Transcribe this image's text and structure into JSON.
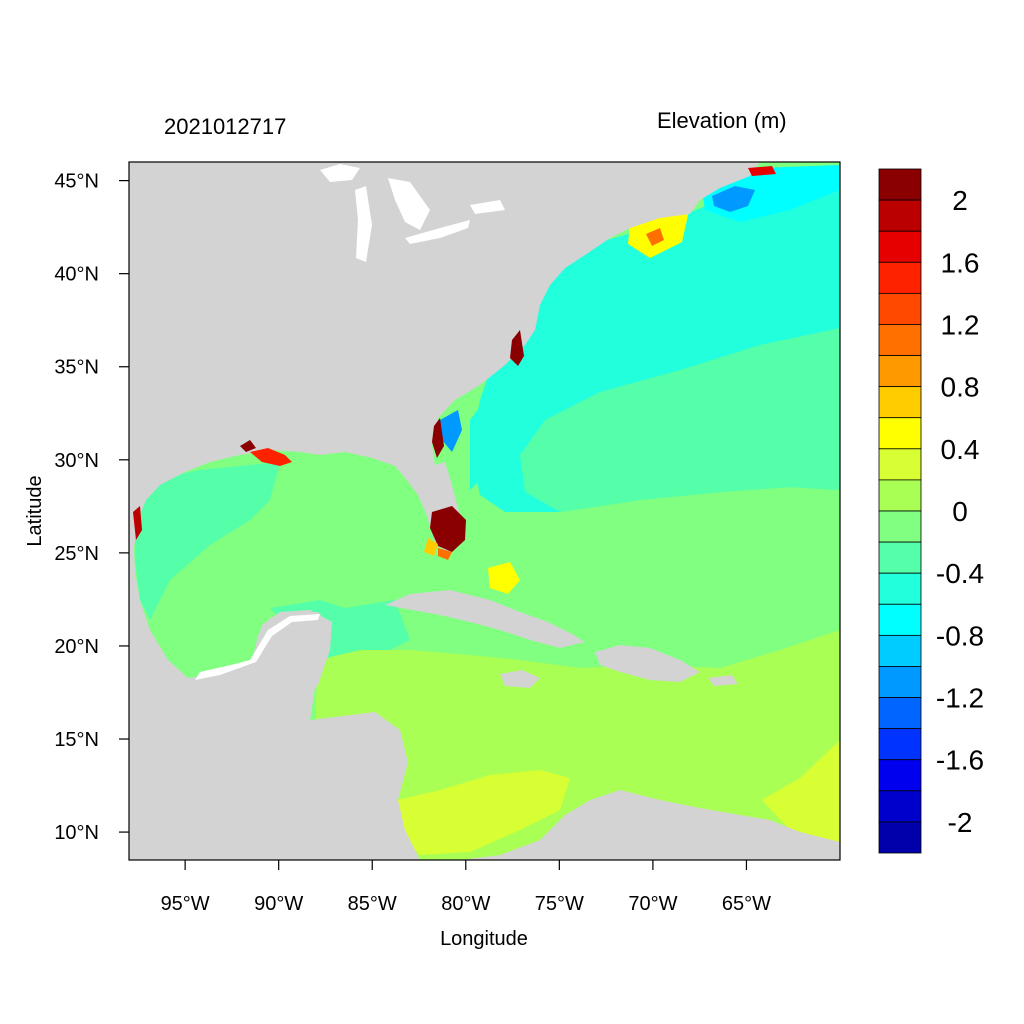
{
  "header": {
    "timestamp": "2021012717",
    "variable": "Elevation (m)"
  },
  "axes": {
    "xlabel": "Longitude",
    "ylabel": "Latitude",
    "lon_range": [
      -98,
      -60
    ],
    "lat_range": [
      8.5,
      46
    ],
    "x_ticks": [
      "95°W",
      "90°W",
      "85°W",
      "80°W",
      "75°W",
      "70°W",
      "65°W"
    ],
    "x_tick_values": [
      -95,
      -90,
      -85,
      -80,
      -75,
      -70,
      -65
    ],
    "y_ticks": [
      "45°N",
      "40°N",
      "35°N",
      "30°N",
      "25°N",
      "20°N",
      "15°N",
      "10°N"
    ],
    "y_tick_values": [
      45,
      40,
      35,
      30,
      25,
      20,
      15,
      10
    ]
  },
  "colorbar": {
    "labels": [
      "2",
      "1.6",
      "1.2",
      "0.8",
      "0.4",
      "0",
      "-0.4",
      "-0.8",
      "-1.2",
      "-1.6",
      "-2"
    ],
    "colors": [
      "#8a0000",
      "#bb0000",
      "#e60000",
      "#ff2200",
      "#ff4800",
      "#ff7000",
      "#ff9900",
      "#ffcc00",
      "#ffff00",
      "#d8ff33",
      "#aaff55",
      "#80ff80",
      "#55ffaa",
      "#22ffdd",
      "#00ffff",
      "#00ccff",
      "#0099ff",
      "#0066ff",
      "#0033ff",
      "#0000ee",
      "#0000cc",
      "#0000aa"
    ]
  },
  "map": {
    "land_color": "#d3d3d3",
    "region": "Gulf of Mexico, Caribbean Sea and western North Atlantic"
  }
}
